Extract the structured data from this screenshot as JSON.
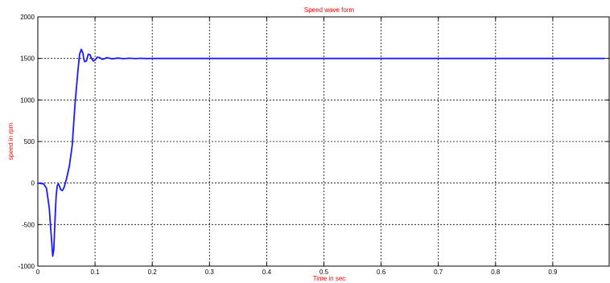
{
  "chart_data": {
    "type": "line",
    "title": "Speed wave form",
    "xlabel": "Time in sec",
    "ylabel": "speed in rpm",
    "xlim": [
      0,
      1
    ],
    "ylim": [
      -1000,
      2000
    ],
    "grid": true,
    "x_ticks": [
      0,
      0.1,
      0.2,
      0.3,
      0.4,
      0.5,
      0.6,
      0.7,
      0.8,
      0.9
    ],
    "x_tick_labels": [
      "0",
      "0.1",
      "0.2",
      "0.3",
      "0.4",
      "0.5",
      "0.6",
      "0.7",
      "0.8",
      "0.9"
    ],
    "y_ticks": [
      -1000,
      -500,
      0,
      500,
      1000,
      1500,
      2000
    ],
    "y_tick_labels": [
      "-1000",
      "-500",
      "0",
      "500",
      "1000",
      "1500",
      "2000"
    ],
    "colors": {
      "line": "#1a1aff",
      "title": "#ff0000",
      "axis_label": "#ff0000",
      "grid": "#000000"
    },
    "series": [
      {
        "x": [
          0,
          0.01,
          0.015,
          0.02,
          0.023,
          0.026,
          0.028,
          0.03,
          0.032,
          0.034,
          0.036,
          0.038,
          0.04,
          0.043,
          0.046,
          0.05,
          0.055,
          0.06,
          0.065,
          0.07,
          0.073,
          0.076,
          0.079,
          0.08,
          0.082,
          0.085,
          0.088,
          0.091,
          0.094,
          0.097,
          0.1,
          0.104,
          0.108,
          0.112,
          0.116,
          0.12,
          0.125,
          0.13,
          0.14,
          0.15,
          0.16,
          0.17,
          0.18,
          0.19,
          0.2,
          0.21,
          0.22,
          0.3,
          0.5,
          0.7,
          0.99
        ],
        "y": [
          0,
          -10,
          -60,
          -300,
          -600,
          -880,
          -800,
          -450,
          -150,
          -30,
          -10,
          -40,
          -80,
          -90,
          -50,
          50,
          200,
          450,
          950,
          1350,
          1550,
          1610,
          1560,
          1500,
          1460,
          1470,
          1550,
          1545,
          1500,
          1470,
          1480,
          1515,
          1510,
          1490,
          1495,
          1508,
          1503,
          1495,
          1505,
          1497,
          1503,
          1498,
          1502,
          1499,
          1501,
          1500,
          1500,
          1500,
          1500,
          1500,
          1500
        ]
      }
    ]
  }
}
